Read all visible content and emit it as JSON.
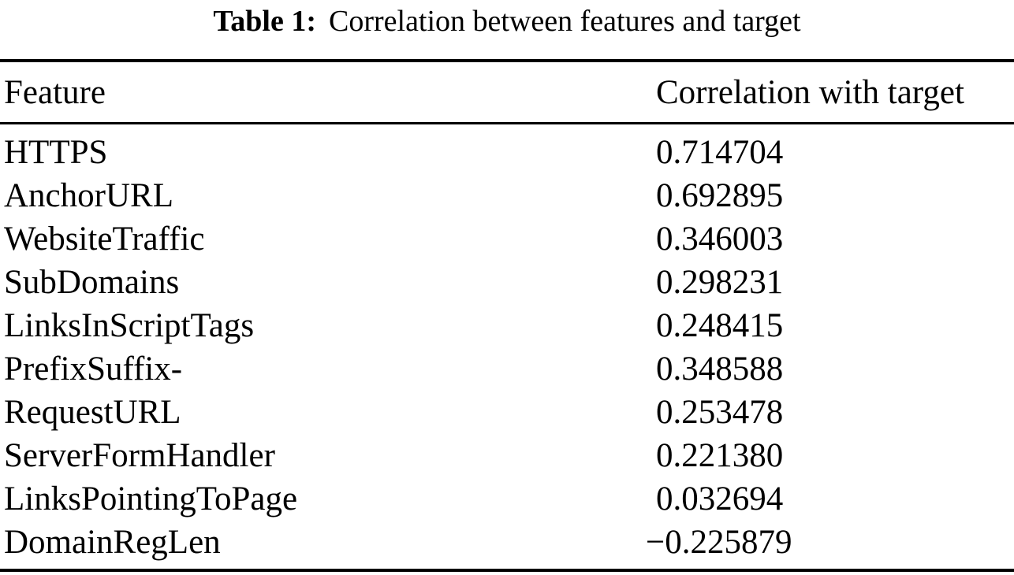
{
  "title": {
    "label": "Table 1:",
    "text": "Correlation between features and target"
  },
  "table": {
    "columns": [
      "Feature",
      "Correlation with target"
    ],
    "rows": [
      {
        "feature": "HTTPS",
        "correlation": "0.714704"
      },
      {
        "feature": "AnchorURL",
        "correlation": "0.692895"
      },
      {
        "feature": "WebsiteTraffic",
        "correlation": "0.346003"
      },
      {
        "feature": "SubDomains",
        "correlation": "0.298231"
      },
      {
        "feature": "LinksInScriptTags",
        "correlation": "0.248415"
      },
      {
        "feature": "PrefixSuffix-",
        "correlation": "0.348588"
      },
      {
        "feature": "RequestURL",
        "correlation": "0.253478"
      },
      {
        "feature": "ServerFormHandler",
        "correlation": "0.221380"
      },
      {
        "feature": "LinksPointingToPage",
        "correlation": "0.032694"
      },
      {
        "feature": "DomainRegLen",
        "correlation": "−0.225879"
      }
    ]
  },
  "colors": {
    "text": "#000000",
    "background": "#ffffff",
    "rule": "#000000"
  }
}
